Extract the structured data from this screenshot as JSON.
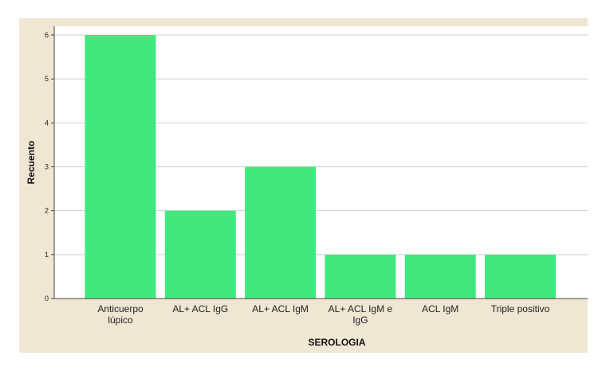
{
  "chart_data": {
    "type": "bar",
    "categories": [
      [
        "Anticuerpo",
        "lúpico"
      ],
      [
        "AL+ ACL IgG"
      ],
      [
        "AL+ ACL IgM"
      ],
      [
        "AL+ ACL IgM e",
        "IgG"
      ],
      [
        "ACL IgM"
      ],
      [
        "Triple positivo"
      ]
    ],
    "values": [
      6,
      2,
      3,
      1,
      1,
      1
    ],
    "title": "",
    "xlabel": "SEROLOGIA",
    "ylabel": "Recuento",
    "ylim": [
      0,
      6
    ],
    "yticks": [
      0,
      1,
      2,
      3,
      4,
      5,
      6
    ],
    "grid": true,
    "legend": "none"
  },
  "colors": {
    "bar": "#42e87e",
    "frame": "#efe6d3",
    "plot_bg": "#ffffff",
    "grid": "#cfcfcf"
  }
}
